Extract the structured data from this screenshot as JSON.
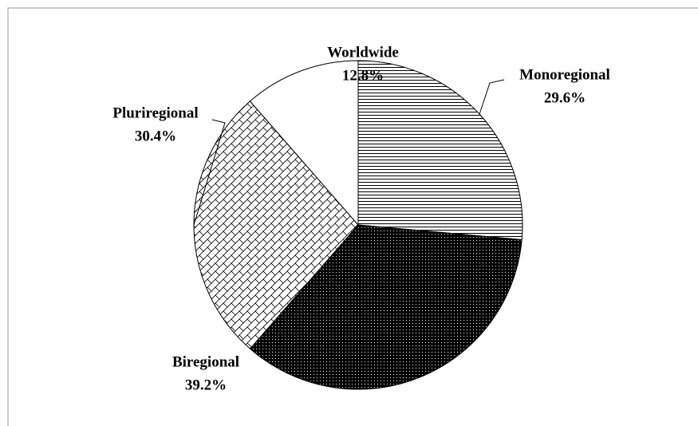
{
  "chart_data": {
    "type": "pie",
    "categories": [
      "Monoregional",
      "Biregional",
      "Pluriregional",
      "Worldwide"
    ],
    "values": [
      29.6,
      39.2,
      30.4,
      12.8
    ],
    "value_labels": [
      "29.6%",
      "39.2%",
      "30.4%",
      "12.8%"
    ],
    "patterns": [
      "horizontal-lines",
      "dots-on-black",
      "crosshatch",
      "plain"
    ]
  }
}
